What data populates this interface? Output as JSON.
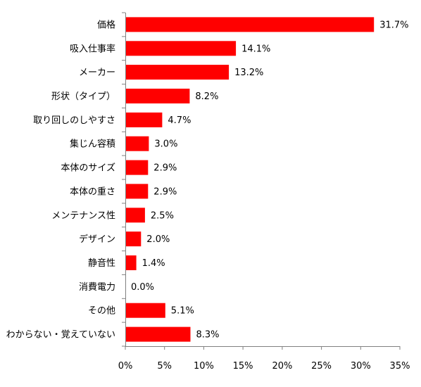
{
  "chart_data": {
    "type": "bar",
    "orientation": "horizontal",
    "categories": [
      "価格",
      "吸入仕事率",
      "メーカー",
      "形状（タイプ）",
      "取り回しのしやすさ",
      "集じん容積",
      "本体のサイズ",
      "本体の重さ",
      "メンテナンス性",
      "デザイン",
      "静音性",
      "消費電力",
      "その他",
      "わからない・覚えていない"
    ],
    "values": [
      31.7,
      14.1,
      13.2,
      8.2,
      4.7,
      3.0,
      2.9,
      2.9,
      2.5,
      2.0,
      1.4,
      0.0,
      5.1,
      8.3
    ],
    "value_labels": [
      "31.7%",
      "14.1%",
      "13.2%",
      "8.2%",
      "4.7%",
      "3.0%",
      "2.9%",
      "2.9%",
      "2.5%",
      "2.0%",
      "1.4%",
      "0.0%",
      "5.1%",
      "8.3%"
    ],
    "xlim": [
      0,
      35
    ],
    "x_ticks": [
      0,
      5,
      10,
      15,
      20,
      25,
      30,
      35
    ],
    "x_tick_labels": [
      "0%",
      "5%",
      "10%",
      "15%",
      "20%",
      "25%",
      "30%",
      "35%"
    ],
    "title": "",
    "xlabel": "",
    "ylabel": "",
    "grid": false,
    "bar_color": "#ff0000",
    "axis_color": "#808080"
  }
}
